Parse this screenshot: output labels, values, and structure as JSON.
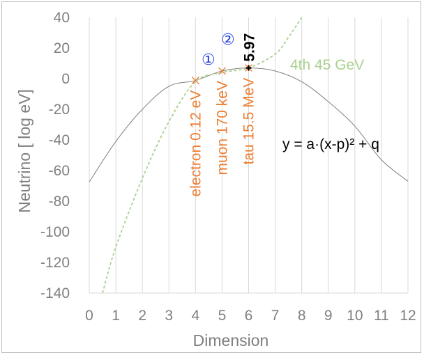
{
  "chart_data": {
    "type": "line",
    "xlabel": "Dimension",
    "ylabel": "Neutrino [ log eV]",
    "xlim": [
      0,
      12
    ],
    "ylim": [
      -140,
      40
    ],
    "x_ticks": [
      "0",
      "1",
      "2",
      "3",
      "4",
      "5",
      "6",
      "7",
      "8",
      "9",
      "10",
      "11",
      "12"
    ],
    "y_ticks": [
      "40",
      "20",
      "0",
      "-20",
      "-40",
      "-60",
      "-80",
      "-100",
      "-120",
      "-140"
    ],
    "grid": "vertical",
    "colors": {
      "parabola": "#808080",
      "fit": "#a9d18e",
      "points": "#ed7d31",
      "peak": "#000000",
      "markers": "#1f3ee0"
    },
    "series": [
      {
        "kind": "parabola",
        "points": [
          [
            0,
            -67.5
          ],
          [
            1,
            -41
          ],
          [
            2,
            -20
          ],
          [
            3,
            -5
          ],
          [
            4,
            -1.2
          ],
          [
            5,
            5
          ],
          [
            6,
            7
          ],
          [
            7,
            5
          ],
          [
            8,
            -2
          ],
          [
            9,
            -15
          ],
          [
            10,
            -31
          ],
          [
            11,
            -53
          ],
          [
            12,
            -67
          ]
        ]
      },
      {
        "kind": "dashed-fit",
        "points": [
          [
            0.5,
            -140
          ],
          [
            1,
            -110
          ],
          [
            2,
            -65
          ],
          [
            3,
            -28
          ],
          [
            4,
            -2
          ],
          [
            5,
            4
          ],
          [
            6,
            7
          ],
          [
            7,
            16
          ],
          [
            7.5,
            27
          ],
          [
            8,
            40
          ]
        ]
      }
    ],
    "particles": [
      {
        "x": 4,
        "y": -1.2,
        "label": "electron 0.12 eV"
      },
      {
        "x": 5,
        "y": 5,
        "label": "muon 170 keV"
      },
      {
        "x": 6,
        "y": 7,
        "label": "tau 15.5 MeV"
      }
    ],
    "peak": {
      "x": 6,
      "y": 7,
      "label": "5.97"
    },
    "annotations": {
      "fourth": "4th 45 GeV",
      "formula": "y = a·(x-p)² + q",
      "marker1": "①",
      "marker2": "②"
    }
  }
}
